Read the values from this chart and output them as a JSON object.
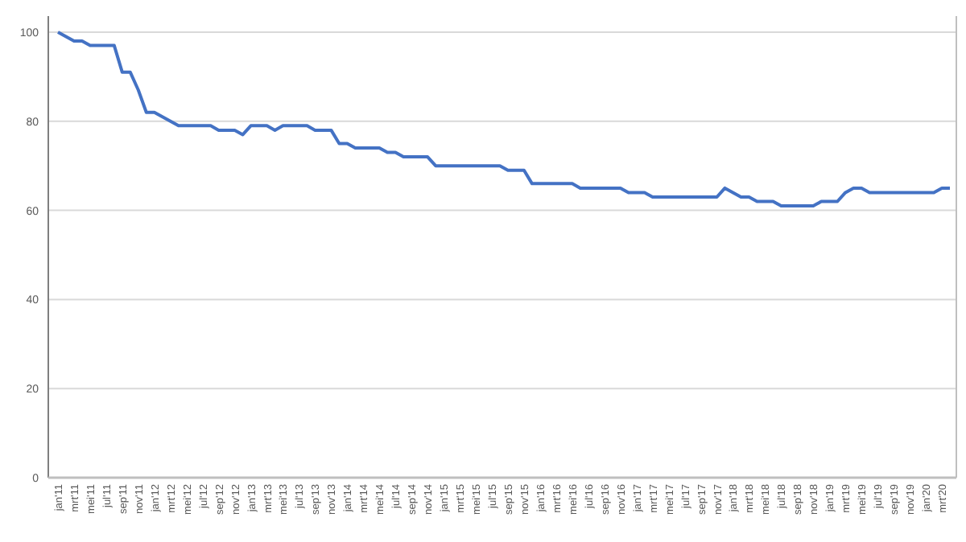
{
  "chart_data": {
    "type": "line",
    "categories": [
      "jan'11",
      null,
      "mrt'11",
      null,
      "mei'11",
      null,
      "jul'11",
      null,
      "sep'11",
      null,
      "nov'11",
      null,
      "jan'12",
      null,
      "mrt'12",
      null,
      "mei'12",
      null,
      "jul'12",
      null,
      "sep'12",
      null,
      "nov'12",
      null,
      "jan'13",
      null,
      "mrt'13",
      null,
      "mei'13",
      null,
      "jul'13",
      null,
      "sep'13",
      null,
      "nov'13",
      null,
      "jan'14",
      null,
      "mrt'14",
      null,
      "mei'14",
      null,
      "jul'14",
      null,
      "sep'14",
      null,
      "nov'14",
      null,
      "jan'15",
      null,
      "mrt'15",
      null,
      "mei'15",
      null,
      "jul'15",
      null,
      "sep'15",
      null,
      "nov'15",
      null,
      "jan'16",
      null,
      "mrt'16",
      null,
      "mei'16",
      null,
      "jul'16",
      null,
      "sep'16",
      null,
      "nov'16",
      null,
      "jan'17",
      null,
      "mrt'17",
      null,
      "mei'17",
      null,
      "jul'17",
      null,
      "sep'17",
      null,
      "nov'17",
      null,
      "jan'18",
      null,
      "mrt'18",
      null,
      "mei'18",
      null,
      "jul'18",
      null,
      "sep'18",
      null,
      "nov'18",
      null,
      "jan'19",
      null,
      "mrt'19",
      null,
      "mei'19",
      null,
      "jul'19",
      null,
      "sep'19",
      null,
      "nov'19",
      null,
      "jan'20",
      null,
      "mrt'20",
      null
    ],
    "series": [
      {
        "color": "#4472c4",
        "values": [
          100,
          99,
          98,
          98,
          97,
          97,
          97,
          97,
          91,
          91,
          87,
          82,
          82,
          81,
          80,
          79,
          79,
          79,
          79,
          79,
          78,
          78,
          78,
          77,
          79,
          79,
          79,
          78,
          79,
          79,
          79,
          79,
          78,
          78,
          78,
          75,
          75,
          74,
          74,
          74,
          74,
          73,
          73,
          72,
          72,
          72,
          72,
          70,
          70,
          70,
          70,
          70,
          70,
          70,
          70,
          70,
          69,
          69,
          69,
          66,
          66,
          66,
          66,
          66,
          66,
          65,
          65,
          65,
          65,
          65,
          65,
          64,
          64,
          64,
          63,
          63,
          63,
          63,
          63,
          63,
          63,
          63,
          63,
          65,
          64,
          63,
          63,
          62,
          62,
          62,
          61,
          61,
          61,
          61,
          61,
          62,
          62,
          62,
          64,
          65,
          65,
          64,
          64,
          64,
          64,
          64,
          64,
          64,
          64,
          64,
          65,
          65
        ]
      }
    ],
    "ylim": [
      0,
      100
    ],
    "yticks": [
      0,
      20,
      40,
      60,
      80,
      100
    ],
    "grid": "y",
    "marker": "none",
    "line_style": "solid"
  }
}
